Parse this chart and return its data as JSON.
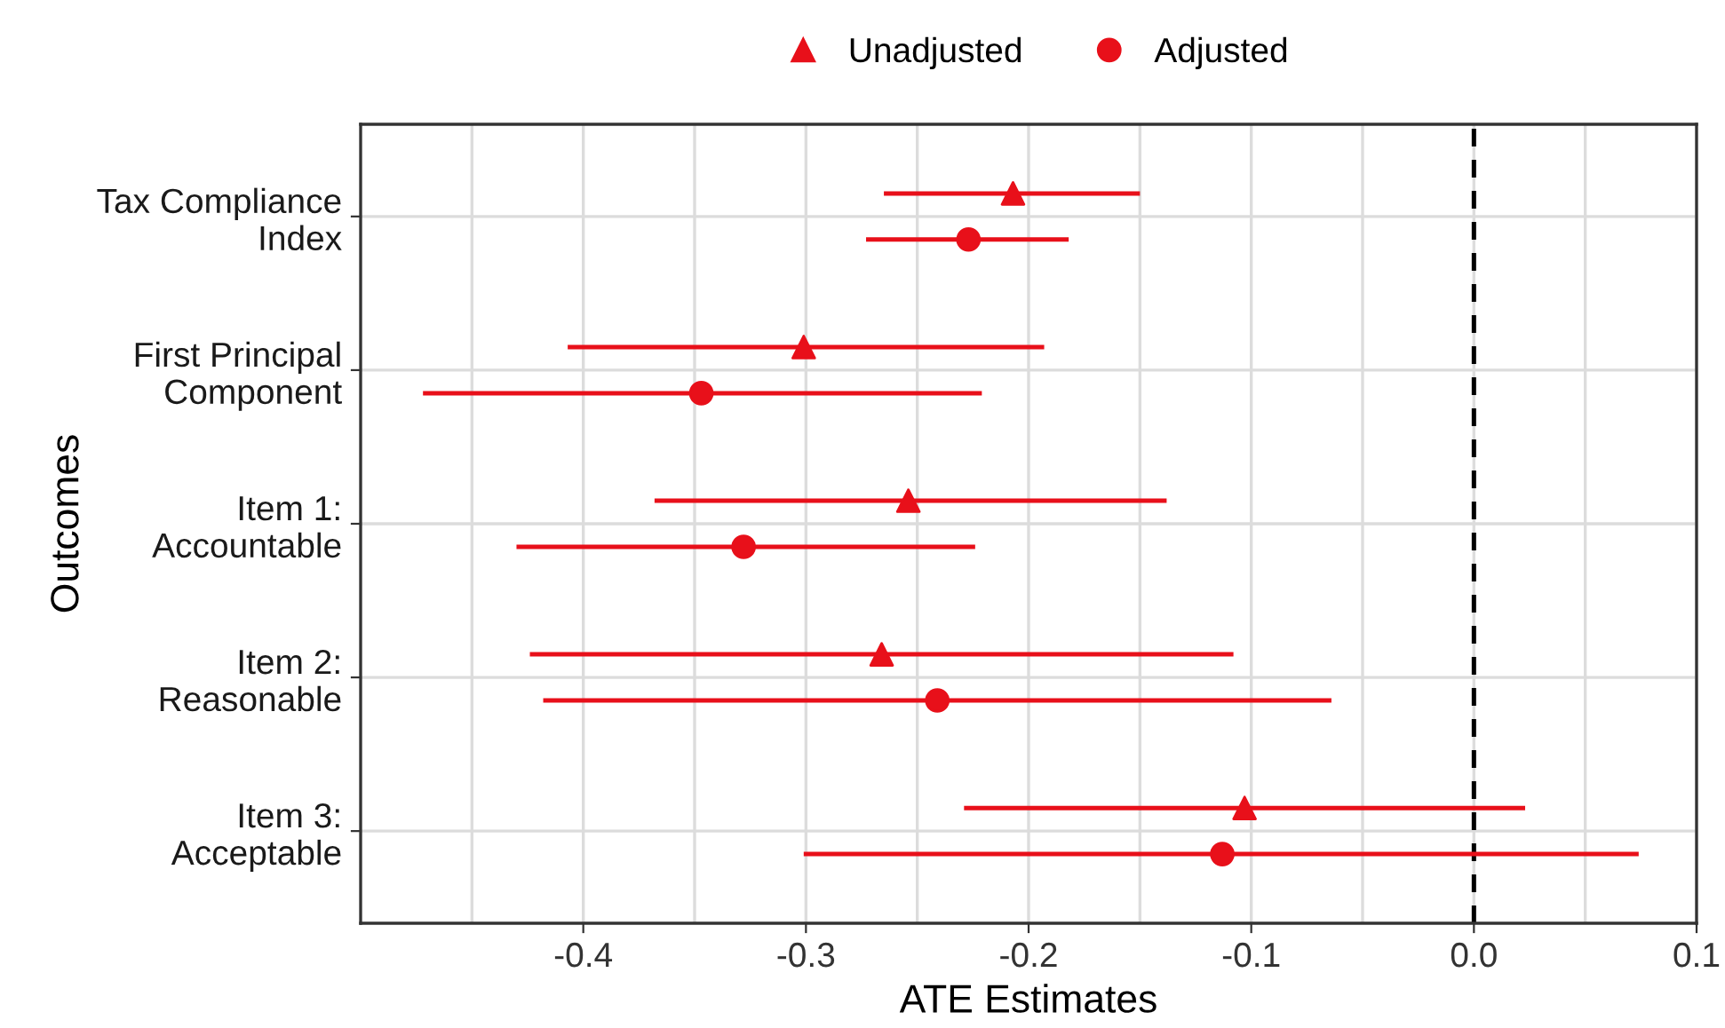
{
  "chart_data": {
    "type": "scatter",
    "orientation": "horizontal",
    "xlabel": "ATE Estimates",
    "ylabel": "Outcomes",
    "categories": [
      "Tax Compliance\nIndex",
      "First Principal\nComponent",
      "Item 1:\nAccountable",
      "Item 2:\nReasonable",
      "Item 3:\nAcceptable"
    ],
    "series": [
      {
        "name": "Unadjusted",
        "color": "#e8101a",
        "marker": "triangle",
        "values": [
          -0.207,
          -0.301,
          -0.254,
          -0.266,
          -0.103
        ],
        "errors": [
          [
            -0.265,
            -0.15
          ],
          [
            -0.407,
            -0.193
          ],
          [
            -0.368,
            -0.138
          ],
          [
            -0.424,
            -0.108
          ],
          [
            -0.229,
            0.023
          ]
        ]
      },
      {
        "name": "Adjusted",
        "color": "#e8101a",
        "marker": "circle",
        "values": [
          -0.227,
          -0.347,
          -0.328,
          -0.241,
          -0.113
        ],
        "errors": [
          [
            -0.273,
            -0.182
          ],
          [
            -0.472,
            -0.221
          ],
          [
            -0.43,
            -0.224
          ],
          [
            -0.418,
            -0.064
          ],
          [
            -0.301,
            0.074
          ]
        ]
      }
    ],
    "xlim": [
      -0.5,
      0.1
    ],
    "xticks": [
      {
        "value": -0.45,
        "label": null
      },
      {
        "value": -0.4,
        "label": "-0.4"
      },
      {
        "value": -0.35,
        "label": null
      },
      {
        "value": -0.3,
        "label": "-0.3"
      },
      {
        "value": -0.25,
        "label": null
      },
      {
        "value": -0.2,
        "label": "-0.2"
      },
      {
        "value": -0.15,
        "label": null
      },
      {
        "value": -0.1,
        "label": "-0.1"
      },
      {
        "value": -0.05,
        "label": null
      },
      {
        "value": 0.0,
        "label": "0.0"
      },
      {
        "value": 0.05,
        "label": null
      },
      {
        "value": 0.1,
        "label": "0.1"
      }
    ],
    "ref_lines": [
      {
        "axis": "x",
        "value": 0.0,
        "color": "#000000",
        "line_style": "dashed"
      }
    ],
    "grid": true,
    "legend": "top"
  }
}
